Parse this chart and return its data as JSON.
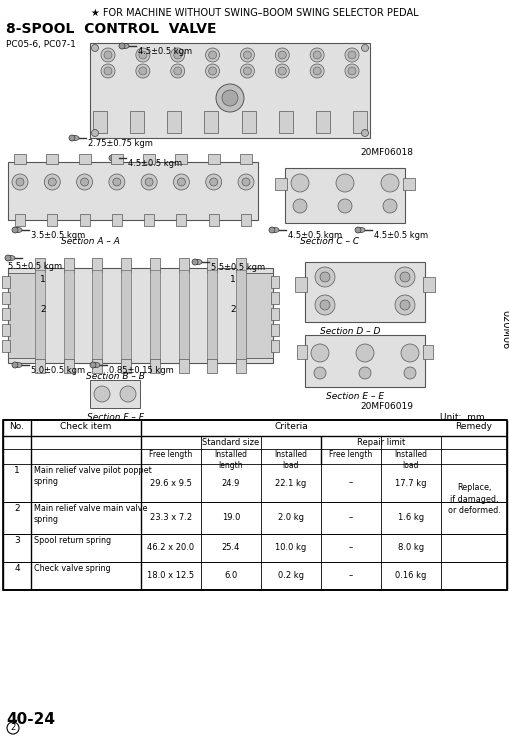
{
  "title_star": "★ FOR MACHINE WITHOUT SWING–BOOM SWING SELECTOR PEDAL",
  "section_title": "8-SPOOL  CONTROL  VALVE",
  "page_number": "40-24",
  "figure_code1": "20MF06018",
  "figure_code2": "20MF06019",
  "unit_label": "Unit:  mm",
  "sidebar_text": "020M06",
  "pc_label": "PC05-6, PC07-1",
  "torques": {
    "t1": "4.5±0.5 kgm",
    "t2": "2.75±0.75 kgm",
    "t3": "4.5±0.5 kgm",
    "t4": "3.5±0.5 kgm",
    "t5": "4.5±0.5 kgm",
    "t6": "4.5±0.5 kgm",
    "t7": "5.5±0.5 kgm",
    "t8": "5.5±0.5 kgm",
    "t9": "5.0±0.5 kgm",
    "t10": "0.85±0.15 kgm"
  },
  "sections": {
    "aa": "Section A – A",
    "bb": "Section B – B",
    "cc": "Section C – C",
    "dd": "Section D – D",
    "ee": "Section E – E",
    "ff": "Section F – F"
  },
  "criteria_sub1": "Standard size",
  "criteria_sub2": "Repair limit",
  "col_headers": [
    "Free length",
    "Installed\nlength",
    "Installed\nload",
    "Free length",
    "Installed\nload"
  ],
  "rows": [
    {
      "no": "1",
      "item": "Main relief valve pilot poppet\nspring",
      "free_length": "29.6 x 9.5",
      "inst_length": "24.9",
      "inst_load": "22.1 kg",
      "repair_free": "–",
      "repair_load": "17.7 kg"
    },
    {
      "no": "2",
      "item": "Main relief valve main valve\nspring",
      "free_length": "23.3 x 7.2",
      "inst_length": "19.0",
      "inst_load": "2.0 kg",
      "repair_free": "–",
      "repair_load": "1.6 kg"
    },
    {
      "no": "3",
      "item": "Spool return spring",
      "free_length": "46.2 x 20.0",
      "inst_length": "25.4",
      "inst_load": "10.0 kg",
      "repair_free": "–",
      "repair_load": "8.0 kg"
    },
    {
      "no": "4",
      "item": "Check valve spring",
      "free_length": "18.0 x 12.5",
      "inst_length": "6.0",
      "inst_load": "0.2 kg",
      "repair_free": "–",
      "repair_load": "0.16 kg"
    }
  ],
  "remedy_text": "Replace,\nif damaged,\nor deformed."
}
